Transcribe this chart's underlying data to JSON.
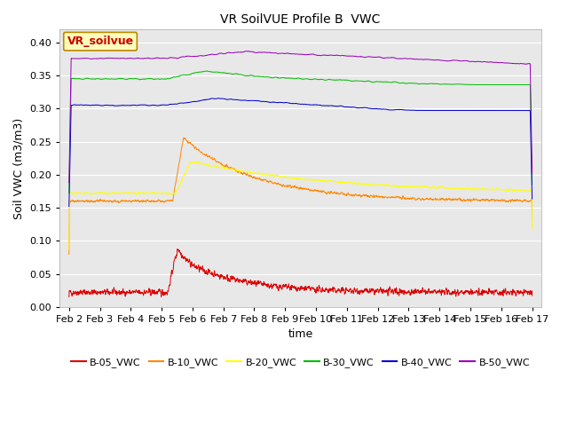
{
  "title": "VR SoilVUE Profile B  VWC",
  "xlabel": "time",
  "ylabel": "Soil VWC (m3/m3)",
  "ylim": [
    0.0,
    0.42
  ],
  "yticks": [
    0.0,
    0.05,
    0.1,
    0.15,
    0.2,
    0.25,
    0.3,
    0.35,
    0.4
  ],
  "xtick_labels": [
    "Feb 2",
    "Feb 3",
    "Feb 4",
    "Feb 5",
    "Feb 6",
    "Feb 7",
    "Feb 8",
    "Feb 9",
    "Feb 10",
    "Feb 11",
    "Feb 12",
    "Feb 13",
    "Feb 14",
    "Feb 15",
    "Feb 16",
    "Feb 17"
  ],
  "series": [
    {
      "name": "B-05_VWC",
      "color": "#dd0000"
    },
    {
      "name": "B-10_VWC",
      "color": "#ff8800"
    },
    {
      "name": "B-20_VWC",
      "color": "#ffff00"
    },
    {
      "name": "B-30_VWC",
      "color": "#00bb00"
    },
    {
      "name": "B-40_VWC",
      "color": "#0000cc"
    },
    {
      "name": "B-50_VWC",
      "color": "#9900bb"
    }
  ],
  "annotation_text": "VR_soilvue",
  "annotation_color": "#cc0000",
  "annotation_bg": "#ffffbb",
  "fig_bg": "#ffffff",
  "plot_bg": "#e8e8e8",
  "grid_color": "#ffffff",
  "n_points": 2160,
  "rain_day": 3.2,
  "seed": 42
}
